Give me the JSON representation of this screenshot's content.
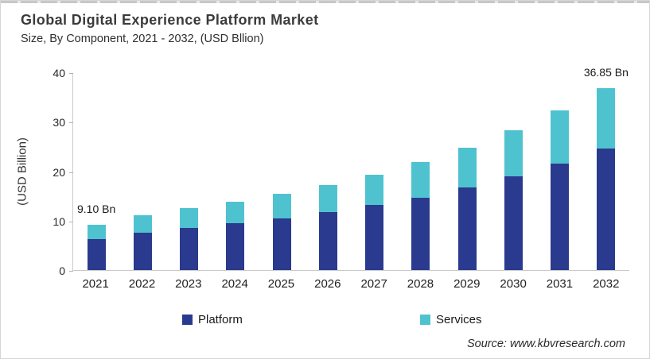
{
  "header": {
    "title": "Global Digital Experience Platform Market",
    "subtitle": "Size, By Component, 2021 - 2032, (USD Bllion)"
  },
  "chart_data": {
    "type": "bar",
    "stacked": true,
    "title": "Global Digital Experience Platform Market Size, By Component, 2021 - 2032, (USD Bllion)",
    "categories": [
      "2021",
      "2022",
      "2023",
      "2024",
      "2025",
      "2026",
      "2027",
      "2028",
      "2029",
      "2030",
      "2031",
      "2032"
    ],
    "series": [
      {
        "name": "Platform",
        "color": "#2a3a8e",
        "values": [
          6.3,
          7.6,
          8.5,
          9.5,
          10.5,
          11.7,
          13.1,
          14.7,
          16.7,
          18.9,
          21.6,
          24.6
        ]
      },
      {
        "name": "Services",
        "color": "#4ec3cf",
        "values": [
          2.8,
          3.5,
          4.0,
          4.4,
          4.9,
          5.5,
          6.2,
          7.1,
          8.0,
          9.4,
          10.7,
          12.25
        ]
      }
    ],
    "totals": [
      9.1,
      11.1,
      12.5,
      13.9,
      15.4,
      17.2,
      19.3,
      21.8,
      24.7,
      28.3,
      32.3,
      36.85
    ],
    "annotations": [
      {
        "category": "2021",
        "text": "9.10 Bn"
      },
      {
        "category": "2032",
        "text": "36.85 Bn"
      }
    ],
    "xlabel": "",
    "ylabel": "(USD Billion)",
    "ylim": [
      0,
      40
    ],
    "yticks": [
      0,
      10,
      20,
      30,
      40
    ],
    "grid": false,
    "legend_position": "bottom"
  },
  "legend": {
    "items": [
      {
        "label": "Platform",
        "color": "#2a3a8e"
      },
      {
        "label": "Services",
        "color": "#4ec3cf"
      }
    ]
  },
  "footer": {
    "source": "Source: www.kbvresearch.com"
  }
}
